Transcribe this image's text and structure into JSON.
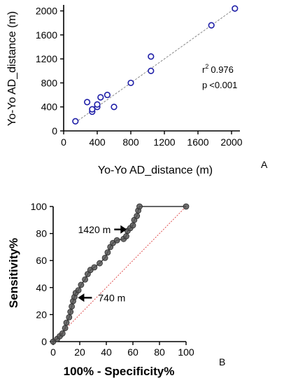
{
  "chart_data": [
    {
      "panel": "A",
      "type": "scatter",
      "xlabel": "Yo-Yo AD_distance (m)",
      "ylabel": "Yo-Yo AD_distance (m)",
      "xlim": [
        0,
        2100
      ],
      "ylim": [
        0,
        2100
      ],
      "xticks": [
        0,
        400,
        800,
        1200,
        1600,
        2000
      ],
      "yticks": [
        0,
        400,
        800,
        1200,
        1600,
        2000
      ],
      "xtick_labels": [
        "0",
        "400",
        "800",
        "1200",
        "1600",
        "2000"
      ],
      "ytick_labels": [
        "0",
        "400",
        "800",
        "1200",
        "1600",
        "2000"
      ],
      "marker_color": "#1f1fa8",
      "line_color": "#888888",
      "points": [
        {
          "x": 140,
          "y": 160
        },
        {
          "x": 280,
          "y": 480
        },
        {
          "x": 340,
          "y": 320
        },
        {
          "x": 340,
          "y": 360
        },
        {
          "x": 400,
          "y": 400
        },
        {
          "x": 400,
          "y": 440
        },
        {
          "x": 440,
          "y": 560
        },
        {
          "x": 520,
          "y": 600
        },
        {
          "x": 600,
          "y": 400
        },
        {
          "x": 800,
          "y": 800
        },
        {
          "x": 1040,
          "y": 1000
        },
        {
          "x": 1040,
          "y": 1240
        },
        {
          "x": 1760,
          "y": 1760
        },
        {
          "x": 2040,
          "y": 2040
        }
      ],
      "fit_line": {
        "x": [
          140,
          2040
        ],
        "y": [
          140,
          2040
        ]
      },
      "r2_label": "r",
      "r2_superscript": "2",
      "r2_value": "0.976",
      "p_label": "p",
      "p_value": "<0.001"
    },
    {
      "panel": "B",
      "type": "line",
      "xlabel": "100% - Specificity%",
      "ylabel": "Sensitivity%",
      "xlim": [
        0,
        100
      ],
      "ylim": [
        0,
        100
      ],
      "xticks": [
        0,
        20,
        40,
        60,
        80,
        100
      ],
      "yticks": [
        0,
        20,
        40,
        60,
        80,
        100
      ],
      "xtick_labels": [
        "0",
        "20",
        "40",
        "60",
        "80",
        "100"
      ],
      "ytick_labels": [
        "0",
        "20",
        "40",
        "60",
        "80",
        "100"
      ],
      "roc_color": "#555555",
      "reference_color": "#e05050",
      "reference_line": {
        "x": [
          0,
          100
        ],
        "y": [
          0,
          100
        ]
      },
      "roc_points": [
        {
          "x": 0,
          "y": 0
        },
        {
          "x": 3,
          "y": 2
        },
        {
          "x": 5,
          "y": 4
        },
        {
          "x": 7,
          "y": 6
        },
        {
          "x": 9,
          "y": 10
        },
        {
          "x": 10,
          "y": 14
        },
        {
          "x": 12,
          "y": 18
        },
        {
          "x": 13,
          "y": 22
        },
        {
          "x": 14,
          "y": 26
        },
        {
          "x": 15,
          "y": 30
        },
        {
          "x": 16,
          "y": 33
        },
        {
          "x": 17,
          "y": 36
        },
        {
          "x": 19,
          "y": 38
        },
        {
          "x": 21,
          "y": 42
        },
        {
          "x": 24,
          "y": 46
        },
        {
          "x": 26,
          "y": 50
        },
        {
          "x": 28,
          "y": 53
        },
        {
          "x": 31,
          "y": 55
        },
        {
          "x": 35,
          "y": 58
        },
        {
          "x": 39,
          "y": 62
        },
        {
          "x": 41,
          "y": 66
        },
        {
          "x": 43,
          "y": 70
        },
        {
          "x": 45,
          "y": 73
        },
        {
          "x": 48,
          "y": 75
        },
        {
          "x": 53,
          "y": 76
        },
        {
          "x": 55,
          "y": 78
        },
        {
          "x": 56,
          "y": 82
        },
        {
          "x": 58,
          "y": 84
        },
        {
          "x": 60,
          "y": 86
        },
        {
          "x": 61,
          "y": 90
        },
        {
          "x": 63,
          "y": 93
        },
        {
          "x": 64,
          "y": 97
        },
        {
          "x": 65,
          "y": 100
        },
        {
          "x": 100,
          "y": 100
        }
      ],
      "annotations": [
        {
          "text": "1420 m",
          "x": 57,
          "y": 83
        },
        {
          "text": "740 m",
          "x": 16,
          "y": 33
        }
      ]
    }
  ],
  "panel_labels": {
    "a": "A",
    "b": "B"
  }
}
